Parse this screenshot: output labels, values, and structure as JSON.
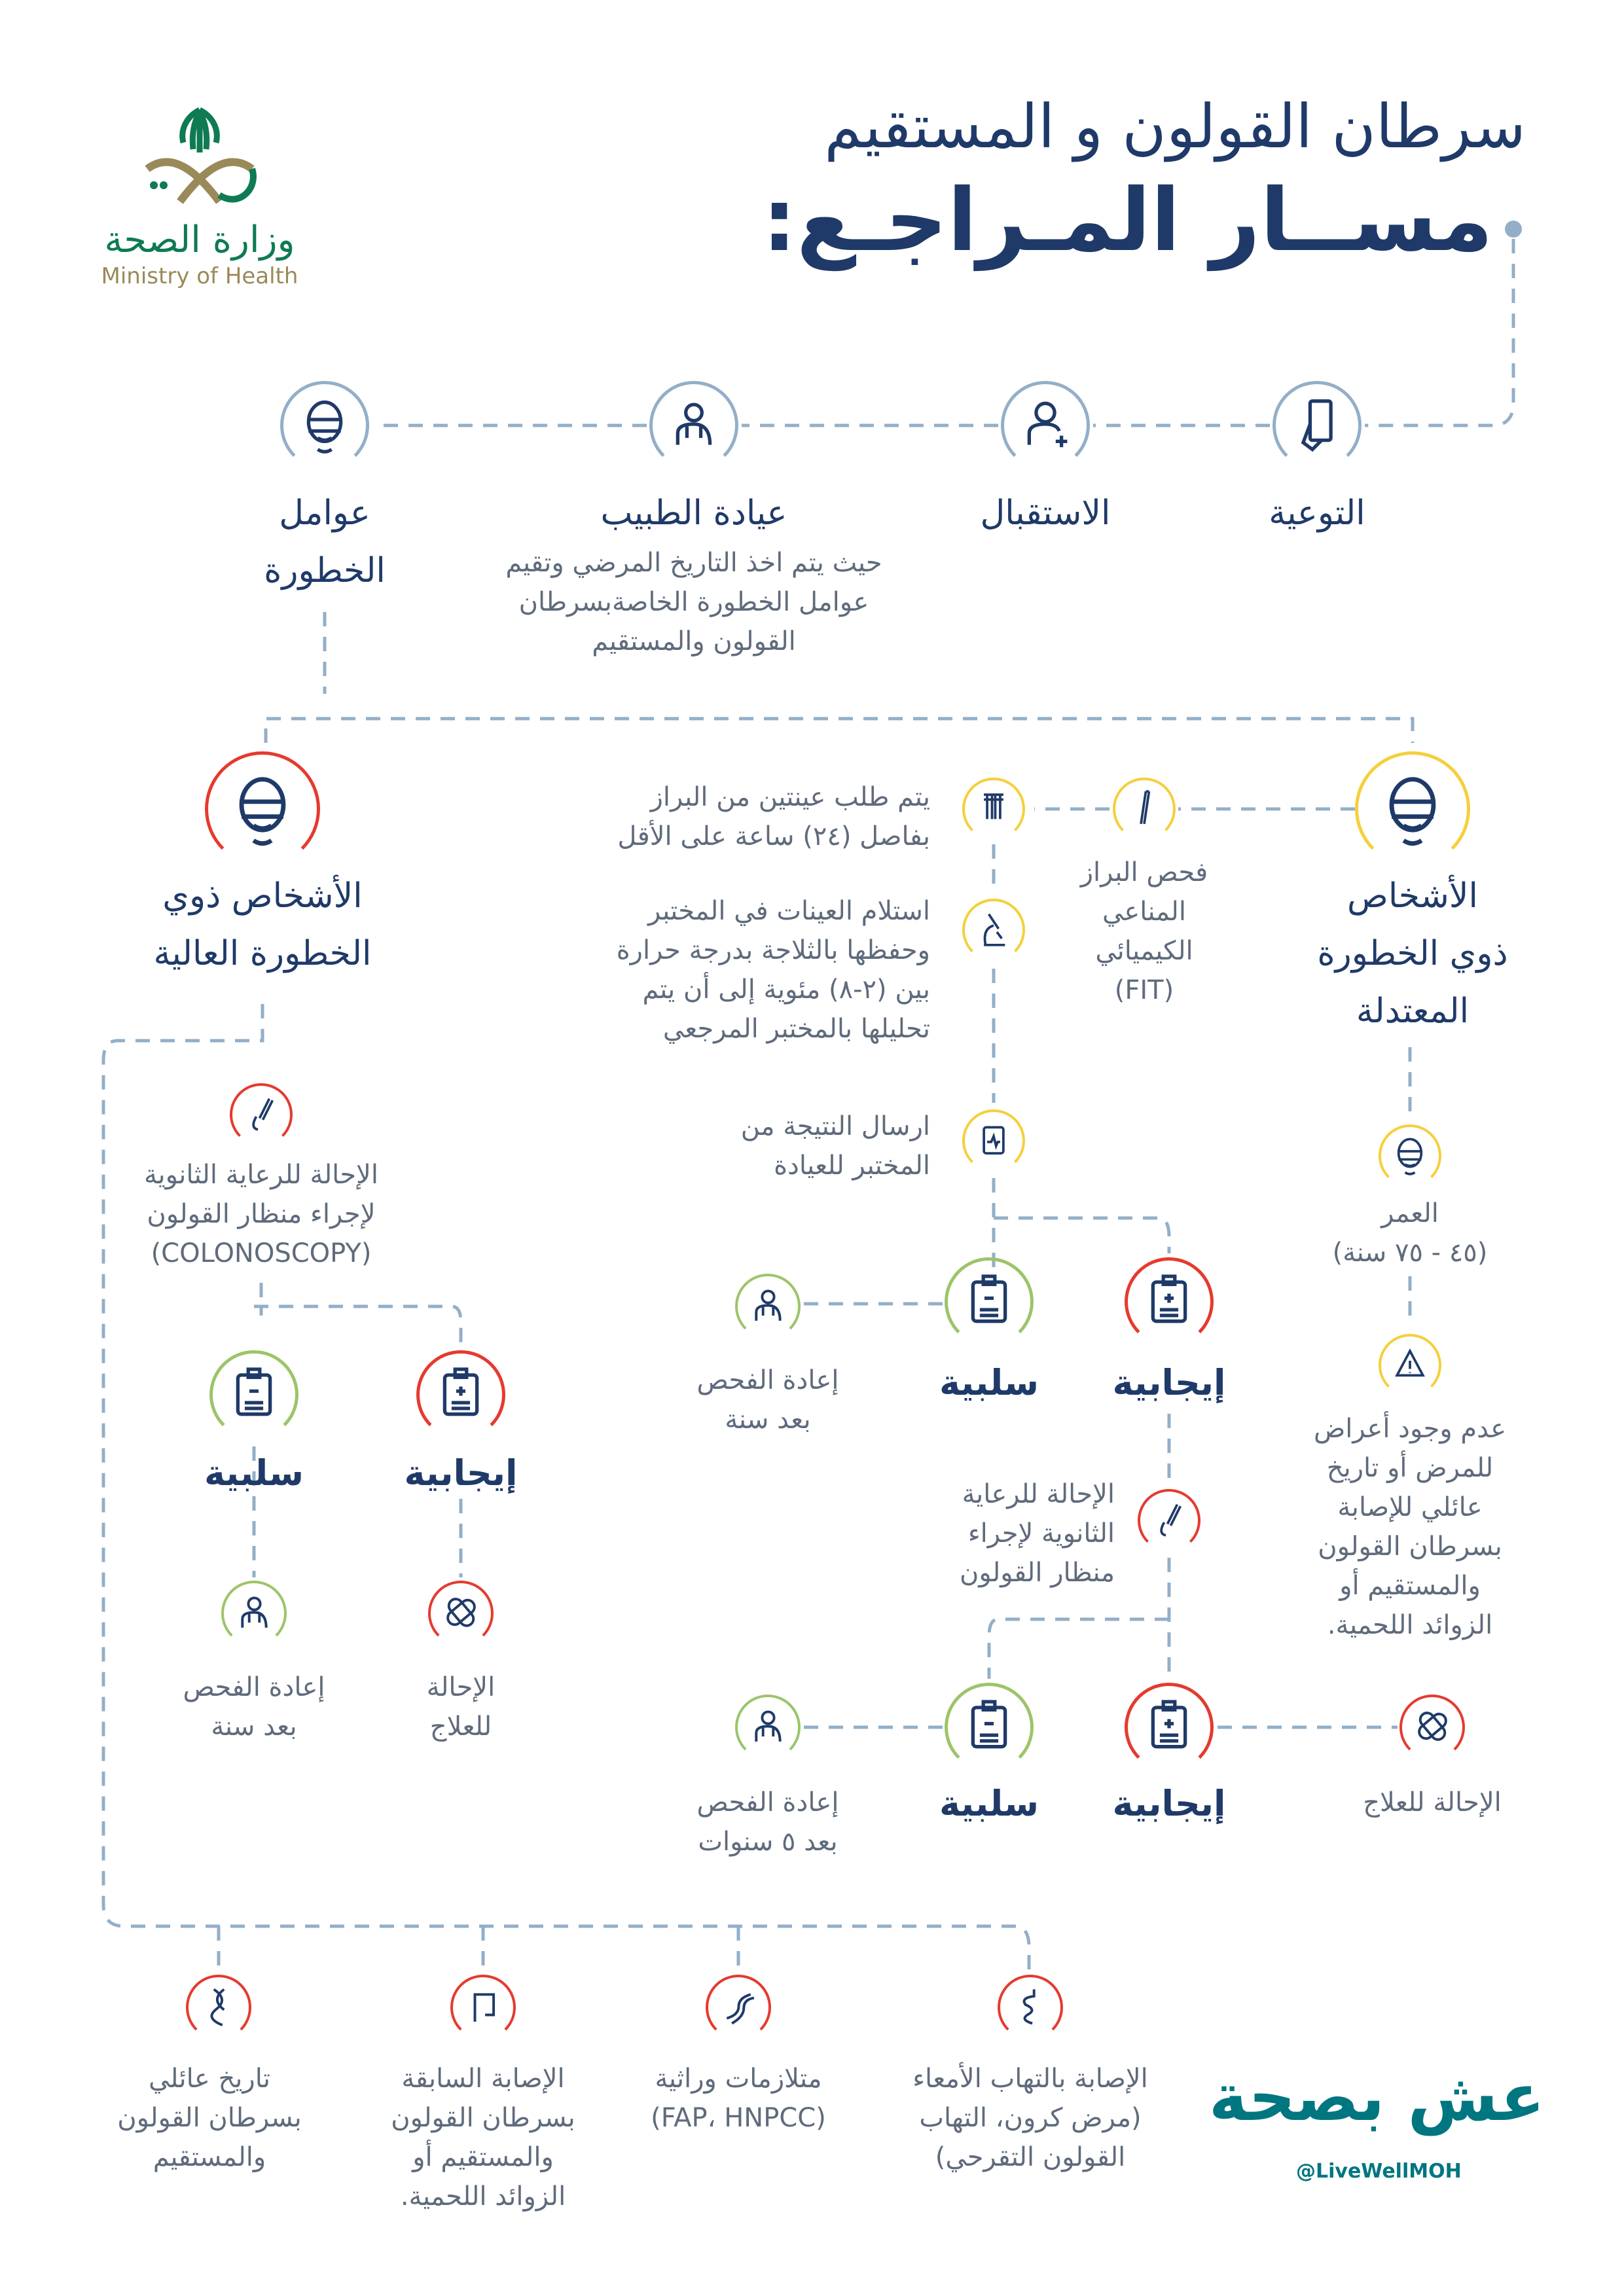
{
  "header": {
    "title_line1": "سرطان القولون و المستقيم",
    "title_line2": "مســار المـراجـع:"
  },
  "logos": {
    "moh_arabic": "وزارة الصحة",
    "moh_english": "Ministry of Health",
    "campaign_text": "عش بصحة",
    "campaign_handle": "@LiveWellMOH"
  },
  "colors": {
    "navy": "#1f3a68",
    "gray_text": "#5f6b7c",
    "connector": "#93afc8",
    "moderate_yellow": "#f5cf3c",
    "high_red": "#e53a2f",
    "negative_green": "#9cc46a",
    "campaign_teal": "#007680"
  },
  "nodes": {
    "awareness": {
      "label": "التوعية",
      "icon": "phone-hand-icon"
    },
    "reception": {
      "label": "الاستقبال",
      "icon": "user-add-icon"
    },
    "clinic": {
      "label": "عيادة الطبيب",
      "desc": "حيث يتم اخذ التاريخ المرضي وتقيم\nعوامل الخطورة الخاصةبسرطان\nالقولون والمستقيم",
      "icon": "doctor-icon"
    },
    "risk_factors": {
      "label": "عوامل\nالخطورة",
      "icon": "patient-face-icon"
    },
    "moderate": {
      "label": "الأشخاص\nذوي الخطورة\nالمعتدلة",
      "icon": "patient-face-icon"
    },
    "high": {
      "label": "الأشخاص ذوي\nالخطورة العالية",
      "icon": "patient-face-icon"
    },
    "fit": {
      "label": "فحص البراز\nالمناعي\nالكيميائي\n(FIT)",
      "icon": "test-stick-icon"
    },
    "samples": {
      "label": "يتم طلب عينتين من البراز\nبفاصل (٢٤) ساعة على الأقل",
      "icon": "test-tubes-icon"
    },
    "lab": {
      "label": "استلام العينات في المختبر\nوحفظها بالثلاجة بدرجة حرارة\nبين (٢-٨) مئوية إلى أن يتم\nتحليلها بالمختبر المرجعي",
      "icon": "microscope-icon"
    },
    "result": {
      "label": "ارسال النتيجة من\nالمختبر للعيادة",
      "icon": "report-clipboard-icon"
    },
    "age": {
      "label": "العمر\n(٤٥ - ٧٥ سنة)",
      "icon": "patient-face-icon"
    },
    "no_symptoms": {
      "label": "عدم وجود أعراض\nللمرض أو تاريخ\nعائلي للإصابة\nبسرطان القولون\nوالمستقيم أو\nالزوائد اللحمية.",
      "icon": "warning-icon"
    },
    "fit_negative": {
      "label": "سلبية",
      "icon": "clipboard-minus-icon"
    },
    "fit_positive": {
      "label": "إيجابية",
      "icon": "clipboard-plus-icon"
    },
    "fit_retest": {
      "label": "إعادة الفحص\nبعد سنة",
      "icon": "doctor-icon"
    },
    "mod_referral": {
      "label": "الإحالة للرعاية\nالثانوية لإجراء\nمنظار القولون",
      "icon": "colonoscope-icon"
    },
    "col_negative": {
      "label": "سلبية",
      "icon": "clipboard-minus-icon"
    },
    "col_positive": {
      "label": "إيجابية",
      "icon": "clipboard-plus-icon"
    },
    "col_retest": {
      "label": "إعادة الفحص\nبعد ٥ سنوات",
      "icon": "doctor-icon"
    },
    "col_treatment": {
      "label": "الإحالة للعلاج",
      "icon": "bandage-icon"
    },
    "high_referral": {
      "label": "الإحالة للرعاية الثانوية\nلإجراء منظار القولون\n(COLONOSCOPY)",
      "icon": "colonoscope-icon"
    },
    "high_negative": {
      "label": "سلبية",
      "icon": "clipboard-minus-icon"
    },
    "high_positive": {
      "label": "إيجابية",
      "icon": "clipboard-plus-icon"
    },
    "high_retest": {
      "label": "إعادة الفحص\nبعد سنة",
      "icon": "doctor-icon"
    },
    "high_treatment": {
      "label": "الإحالة\nللعلاج",
      "icon": "bandage-icon"
    },
    "family_history": {
      "label": "تاريخ عائلي\nبسرطان القولون\nوالمستقيم",
      "icon": "family-dna-icon"
    },
    "previous": {
      "label": "الإصابة السابقة\nبسرطان القولون\nوالمستقيم أو\nالزوائد اللحمية.",
      "icon": "colon-icon"
    },
    "syndromes": {
      "label": "متلازمات وراثية\n(FAP، HNPCC)",
      "icon": "dna-icon"
    },
    "ibd": {
      "label": "الإصابة بالتهاب الأمعاء\n(مرض كرون، التهاب\nالقولون  التقرحي)",
      "icon": "intestine-icon"
    }
  }
}
